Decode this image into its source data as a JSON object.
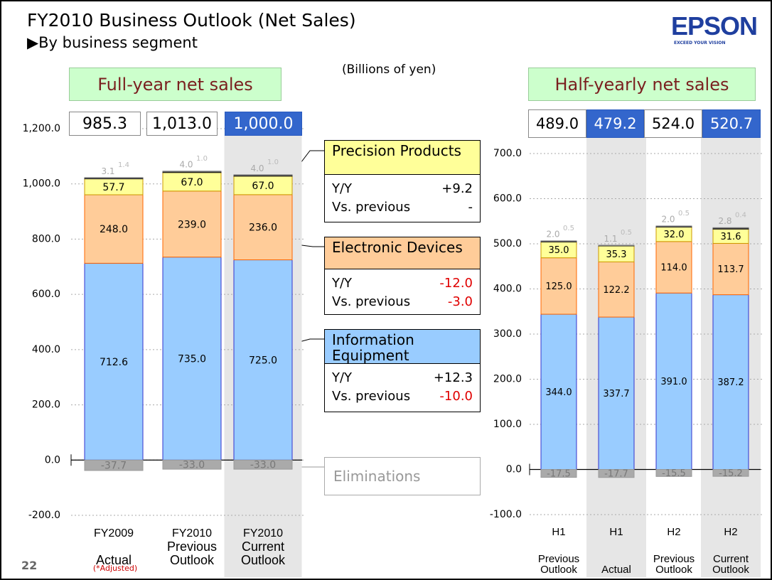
{
  "header": {
    "title": "FY2010 Business Outlook (Net Sales)",
    "subtitle": "▶By business segment",
    "logo": "EPSON",
    "tagline": "EXCEED YOUR VISION",
    "unit": "(Billions of yen)",
    "page": "22",
    "note": "(*Adjusted)"
  },
  "change_labels": {
    "yy": "Y/Y",
    "vs_previous": "Vs. previous"
  },
  "chart_data": [
    {
      "type": "stacked_bar",
      "title": "Full-year net sales",
      "categories": [
        "FY2009",
        "FY2010",
        "FY2010"
      ],
      "subcategories": [
        "Actual",
        "Previous Outlook",
        "Current Outlook"
      ],
      "totals": [
        985.3,
        1013.0,
        1000.0
      ],
      "total_labels": [
        "985.3",
        "1,013.0",
        "1,000.0"
      ],
      "highlight": [
        2
      ],
      "ylim": [
        -200,
        1200
      ],
      "yticks": [
        {
          "value": -200,
          "label": "-200.0"
        },
        {
          "value": 0,
          "label": "0.0"
        },
        {
          "value": 200,
          "label": "200.0"
        },
        {
          "value": 400,
          "label": "400.0"
        },
        {
          "value": 600,
          "label": "600.0"
        },
        {
          "value": 800,
          "label": "800.0"
        },
        {
          "value": 1000,
          "label": "1,000.0"
        },
        {
          "value": 1200,
          "label": "1,200.0"
        }
      ],
      "grid": true,
      "series": [
        {
          "name": "Information Equipment",
          "color": "#99ccff",
          "stroke": "#3333cc",
          "label_color": "#000000",
          "values": [
            712.6,
            735,
            725
          ],
          "value_labels": [
            "712.6",
            "735.0",
            "725.0"
          ],
          "yy": "+12.3",
          "vs_previous": "-10.0"
        },
        {
          "name": "Electronic Devices",
          "color": "#ffcc99",
          "stroke": "#ff6600",
          "label_color": "#000000",
          "values": [
            248,
            239,
            236
          ],
          "value_labels": [
            "248.0",
            "239.0",
            "236.0"
          ],
          "yy": "-12.0",
          "vs_previous": "-3.0"
        },
        {
          "name": "Precision Products",
          "color": "#ffff99",
          "stroke": "#cc9900",
          "label_color": "#000000",
          "values": [
            57.7,
            67,
            67
          ],
          "value_labels": [
            "57.7",
            "67.0",
            "67.0"
          ],
          "yy": "+9.2",
          "vs_previous": "-"
        },
        {
          "color": "#222222",
          "stroke": "#222222",
          "label_color": "#aaaaaa",
          "values": [
            3.1,
            4,
            4
          ],
          "value_labels": [
            "3.1",
            "4.0",
            "4.0"
          ]
        },
        {
          "color": "#777777",
          "stroke": "#777777",
          "label_color": "#bbbbbb",
          "values": [
            1.4,
            1,
            1
          ],
          "value_labels": [
            "1.4",
            "1.0",
            "1.0"
          ]
        },
        {
          "name": "Eliminations",
          "color": "#aaaaaa",
          "stroke": "#999999",
          "label_color": "#777777",
          "values": [
            -37.7,
            -33,
            -33
          ],
          "value_labels": [
            "-37.7",
            "-33.0",
            "-33.0"
          ]
        }
      ]
    },
    {
      "type": "stacked_bar",
      "title": "Half-yearly net sales",
      "categories": [
        "H1",
        "H1",
        "H2",
        "H2"
      ],
      "subcategories": [
        "Previous Outlook",
        "Actual",
        "Previous Outlook",
        "Current Outlook"
      ],
      "totals": [
        489.0,
        479.2,
        524.0,
        520.7
      ],
      "total_labels": [
        "489.0",
        "479.2",
        "524.0",
        "520.7"
      ],
      "highlight": [
        1,
        3
      ],
      "ylim": [
        -100,
        700
      ],
      "yticks": [
        {
          "value": -100,
          "label": "-100.0"
        },
        {
          "value": 0,
          "label": "0.0"
        },
        {
          "value": 100,
          "label": "100.0"
        },
        {
          "value": 200,
          "label": "200.0"
        },
        {
          "value": 300,
          "label": "300.0"
        },
        {
          "value": 400,
          "label": "400.0"
        },
        {
          "value": 500,
          "label": "500.0"
        },
        {
          "value": 600,
          "label": "600.0"
        },
        {
          "value": 700,
          "label": "700.0"
        }
      ],
      "grid": true,
      "series": [
        {
          "color": "#99ccff",
          "stroke": "#3333cc",
          "label_color": "#000000",
          "values": [
            344.0,
            337.7,
            391.0,
            387.2
          ],
          "value_labels": [
            "344.0",
            "337.7",
            "391.0",
            "387.2"
          ]
        },
        {
          "color": "#ffcc99",
          "stroke": "#ff6600",
          "label_color": "#000000",
          "values": [
            125.0,
            122.2,
            114.0,
            113.7
          ],
          "value_labels": [
            "125.0",
            "122.2",
            "114.0",
            "113.7"
          ]
        },
        {
          "color": "#ffff99",
          "stroke": "#cc9900",
          "label_color": "#000000",
          "values": [
            35.0,
            35.3,
            32.0,
            31.6
          ],
          "value_labels": [
            "35.0",
            "35.3",
            "32.0",
            "31.6"
          ]
        },
        {
          "color": "#222222",
          "stroke": "#222222",
          "label_color": "#aaaaaa",
          "values": [
            2.0,
            1.1,
            2.0,
            2.8
          ],
          "value_labels": [
            "2.0",
            "1.1",
            "2.0",
            "2.8"
          ]
        },
        {
          "color": "#777777",
          "stroke": "#777777",
          "label_color": "#bbbbbb",
          "values": [
            0.5,
            0.5,
            0.5,
            0.4
          ],
          "value_labels": [
            "0.5",
            "0.5",
            "0.5",
            "0.4"
          ]
        },
        {
          "color": "#aaaaaa",
          "stroke": "#999999",
          "label_color": "#777777",
          "values": [
            -17.5,
            -17.7,
            -15.5,
            -15.2
          ],
          "value_labels": [
            "-17.5",
            "-17.7",
            "-15.5",
            "-15.2"
          ]
        }
      ]
    }
  ]
}
